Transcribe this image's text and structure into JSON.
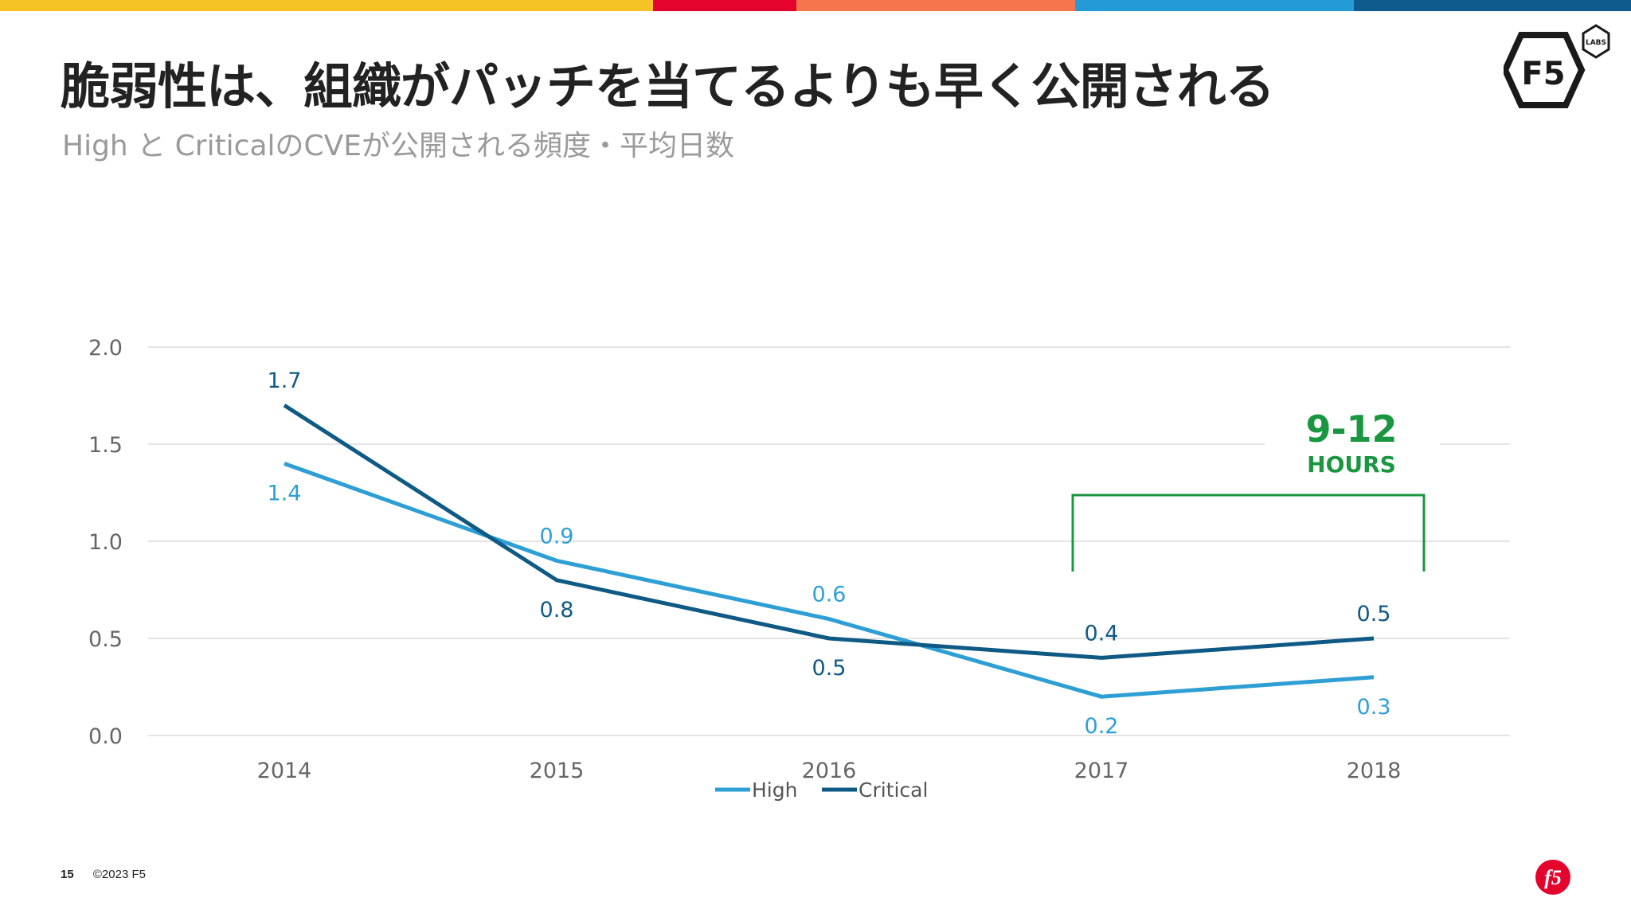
{
  "slide": {
    "title": "脆弱性は、組織がパッチを当てるよりも早く公開される",
    "subtitle": "High と CriticalのCVEが公開される頻度・平均日数",
    "page_number": "15",
    "copyright": "©2023 F5",
    "stripe_colors": [
      "#f5c325",
      "#e4032d",
      "#f5764d",
      "#249bd7",
      "#105b8e"
    ]
  },
  "logo": {
    "brand": "F5",
    "labs": "LABS",
    "color": "#1a1a1a"
  },
  "footer_logo": {
    "text": "f5",
    "color": "#e4032d"
  },
  "annotation": {
    "value": "9-12",
    "unit": "HOURS",
    "color": "#1a9640"
  },
  "chart_data": {
    "type": "line",
    "categories": [
      "2014",
      "2015",
      "2016",
      "2017",
      "2018"
    ],
    "series": [
      {
        "name": "High",
        "values": [
          1.4,
          0.9,
          0.6,
          0.2,
          0.3
        ],
        "color": "#2e9fd5"
      },
      {
        "name": "Critical",
        "values": [
          1.7,
          0.8,
          0.5,
          0.4,
          0.5
        ],
        "color": "#0f5a85"
      }
    ],
    "ylim": [
      0,
      2.0
    ],
    "yticks": [
      "0.0",
      "0.5",
      "1.0",
      "1.5",
      "2.0"
    ],
    "grid": true,
    "legend": "bottom-center",
    "title": "",
    "xlabel": "",
    "ylabel": ""
  }
}
